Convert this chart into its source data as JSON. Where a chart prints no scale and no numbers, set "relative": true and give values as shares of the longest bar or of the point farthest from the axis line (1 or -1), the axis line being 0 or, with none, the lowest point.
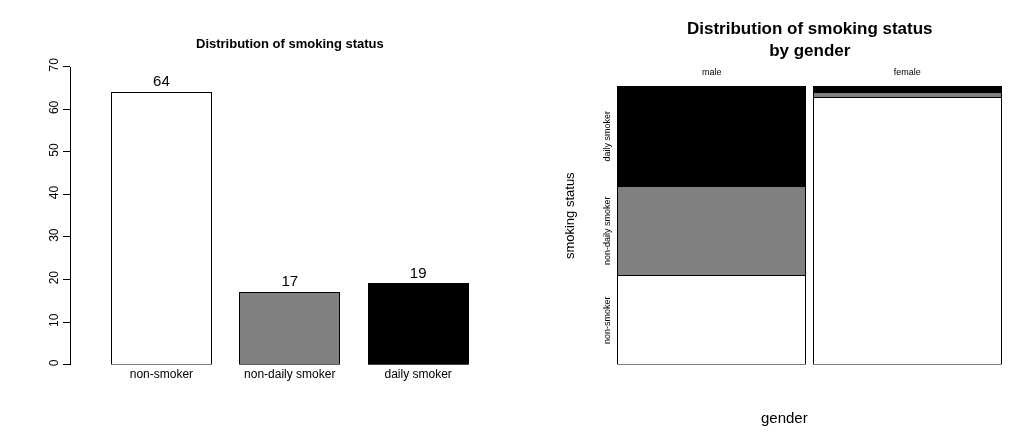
{
  "chart_data": [
    {
      "type": "bar",
      "title": "Distribution of smoking status",
      "categories": [
        "non-smoker",
        "non-daily smoker",
        "daily smoker"
      ],
      "values": [
        64,
        17,
        19
      ],
      "colors": [
        "#ffffff",
        "#808080",
        "#000000"
      ],
      "ylim": [
        0,
        70
      ],
      "yticks": [
        0,
        10,
        20,
        30,
        40,
        50,
        60,
        70
      ],
      "data_labels": true
    },
    {
      "type": "bar",
      "title": "Distribution of smoking status\nby gender",
      "xlabel": "gender",
      "ylabel": "smoking status",
      "categories": [
        "male",
        "female"
      ],
      "stacked": true,
      "relative": true,
      "series": [
        {
          "name": "non-smoker",
          "color": "#ffffff",
          "values": [
            0.32,
            0.96
          ]
        },
        {
          "name": "non-daily smoker",
          "color": "#808080",
          "values": [
            0.32,
            0.02
          ]
        },
        {
          "name": "daily smoker",
          "color": "#000000",
          "values": [
            0.36,
            0.02
          ]
        }
      ]
    }
  ]
}
